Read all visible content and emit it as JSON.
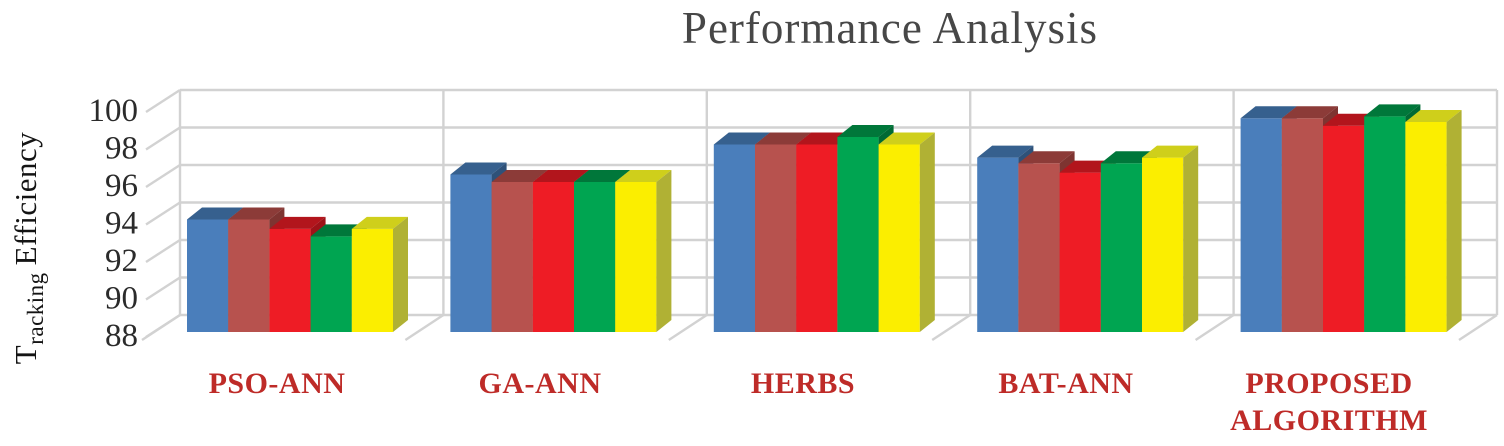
{
  "title": "Performance Analysis",
  "y_axis": {
    "label_prefix": "T",
    "label_subscript": "racking",
    "label_suffix": "Efficiency",
    "ticks": [
      "100",
      "98",
      "96",
      "94",
      "92",
      "90",
      "88"
    ]
  },
  "chart_data": {
    "type": "bar",
    "style": "3d-clustered-column",
    "title": "Performance Analysis",
    "ylabel": "Tracking Efficiency",
    "ylim": [
      88,
      100
    ],
    "ytick_step": 2,
    "grid": true,
    "legend": "none",
    "categories": [
      "PSO-ANN",
      "GA-ANN",
      "HERBS",
      "BAT-ANN",
      "PROPOSED ALGORITHM"
    ],
    "series": [
      {
        "name": "blue",
        "color": "#4A7EBB",
        "top": "#36608E",
        "side": "#2E5179",
        "values": [
          94.0,
          96.4,
          98.0,
          97.3,
          99.4
        ]
      },
      {
        "name": "maroon",
        "color": "#B7524E",
        "top": "#8C3B38",
        "side": "#7E3431",
        "values": [
          94.0,
          96.0,
          98.0,
          97.0,
          99.4
        ]
      },
      {
        "name": "red",
        "color": "#EE1C25",
        "top": "#B2151C",
        "side": "#9E1218",
        "values": [
          93.5,
          96.0,
          98.0,
          96.5,
          99.0
        ]
      },
      {
        "name": "green",
        "color": "#00A551",
        "top": "#00773A",
        "side": "#006A34",
        "values": [
          93.1,
          96.0,
          98.4,
          97.0,
          99.5
        ]
      },
      {
        "name": "yellow",
        "color": "#FBEE00",
        "top": "#CFCF1B",
        "side": "#B0B134",
        "values": [
          93.5,
          96.0,
          98.0,
          97.3,
          99.2
        ]
      }
    ]
  },
  "colors": {
    "grid": "#D2D2D2",
    "axis_text": "#2B2B2B",
    "category_label": "#BE2B28",
    "title_text": "#474747",
    "background": "#FFFFFF"
  }
}
